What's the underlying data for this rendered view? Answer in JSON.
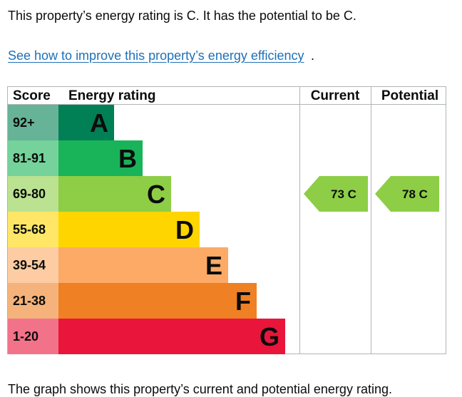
{
  "intro_text": "This property’s energy rating is C. It has the potential to be C.",
  "improve_link": "See how to improve this property’s energy efficiency",
  "improve_link_suffix": ".",
  "table": {
    "headers": {
      "score": "Score",
      "rating": "Energy rating",
      "current": "Current",
      "potential": "Potential"
    }
  },
  "bands": [
    {
      "letter": "A",
      "score": "92+",
      "color": "#008054",
      "score_bg": "#66b398",
      "letter_color": "#0b0c0c"
    },
    {
      "letter": "B",
      "score": "81-91",
      "color": "#19b459",
      "score_bg": "#75d29b",
      "letter_color": "#0b0c0c"
    },
    {
      "letter": "C",
      "score": "69-80",
      "color": "#8dce46",
      "score_bg": "#bbe290",
      "letter_color": "#0b0c0c"
    },
    {
      "letter": "D",
      "score": "55-68",
      "color": "#ffd500",
      "score_bg": "#ffe666",
      "letter_color": "#0b0c0c"
    },
    {
      "letter": "E",
      "score": "39-54",
      "color": "#fcaa65",
      "score_bg": "#fdcca3",
      "letter_color": "#0b0c0c"
    },
    {
      "letter": "F",
      "score": "21-38",
      "color": "#ef8023",
      "score_bg": "#f5b37b",
      "letter_color": "#0b0c0c"
    },
    {
      "letter": "G",
      "score": "1-20",
      "color": "#e9153b",
      "score_bg": "#f27389",
      "letter_color": "#0b0c0c"
    }
  ],
  "current": {
    "value": 73,
    "band": "C",
    "label": "73  C",
    "color": "#8dce46"
  },
  "potential": {
    "value": 78,
    "band": "C",
    "label": "78  C",
    "color": "#8dce46"
  },
  "footer_text": "The graph shows this property’s current and potential energy rating."
}
